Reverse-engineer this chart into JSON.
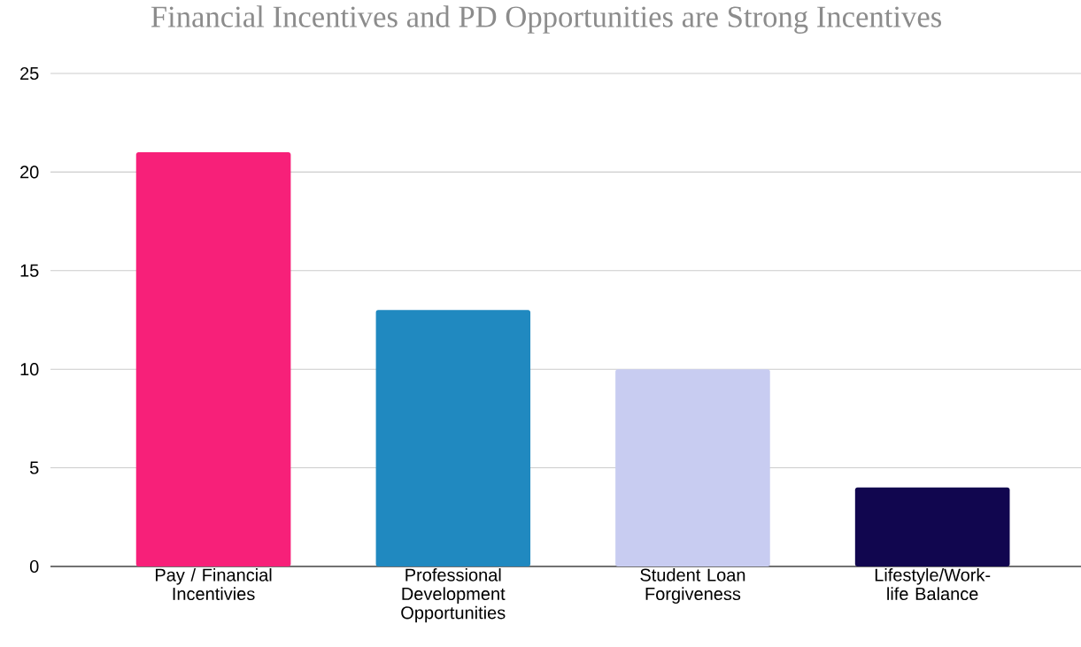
{
  "chart_data": {
    "type": "bar",
    "title": "Financial Incentives and PD Opportunities are Strong Incentives",
    "categories": [
      "Pay / Financial Incentivies",
      "Professional Development Opportunities",
      "Student Loan Forgiveness",
      "Lifestyle/Work-life Balance"
    ],
    "values": [
      21,
      13,
      10,
      4
    ],
    "colors": [
      "#f72079",
      "#2089c0",
      "#c8ccf1",
      "#11064f"
    ],
    "ylim": [
      0,
      25
    ],
    "yticks": [
      0,
      5,
      10,
      15,
      20,
      25
    ],
    "grid": "y"
  }
}
